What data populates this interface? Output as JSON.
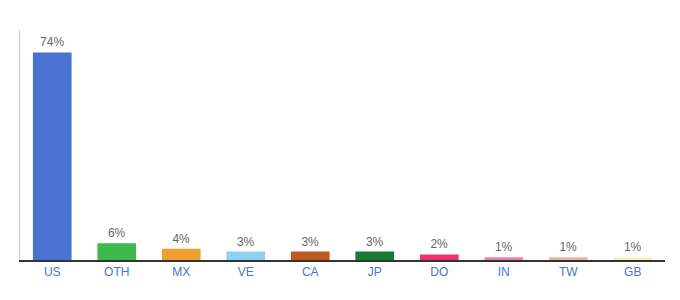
{
  "chart_data": {
    "type": "bar",
    "categories": [
      "US",
      "OTH",
      "MX",
      "VE",
      "CA",
      "JP",
      "DO",
      "IN",
      "TW",
      "GB"
    ],
    "values": [
      74,
      6,
      4,
      3,
      3,
      3,
      2,
      1,
      1,
      1
    ],
    "value_labels": [
      "74%",
      "6%",
      "4%",
      "3%",
      "3%",
      "3%",
      "2%",
      "1%",
      "1%",
      "1%"
    ],
    "colors": [
      "#4a72d1",
      "#3dba4e",
      "#f0a030",
      "#90d0f0",
      "#c05820",
      "#1a7a30",
      "#f03070",
      "#f080b0",
      "#f0b0a0",
      "#f0f0c0"
    ],
    "ylim": [
      0,
      82
    ],
    "data_labels": true,
    "tick_labels": "x",
    "grid": false
  }
}
